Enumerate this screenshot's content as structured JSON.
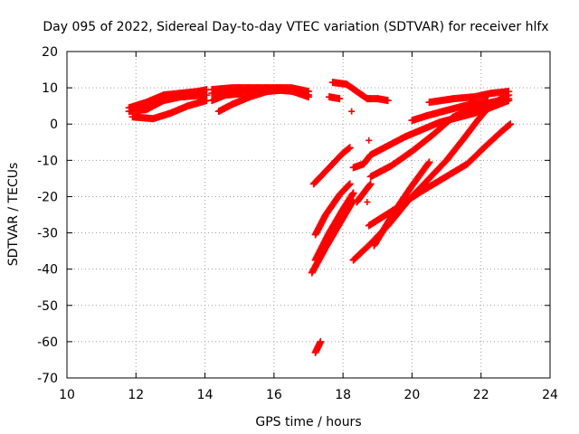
{
  "chart_data": {
    "type": "scatter",
    "title": "Day 095 of 2022, Sidereal Day-to-day VTEC variation (SDTVAR) for receiver hlfx",
    "xlabel": "GPS time / hours",
    "ylabel": "SDTVAR / TECUs",
    "xlim": [
      10,
      24
    ],
    "ylim": [
      -70,
      20
    ],
    "xticks": [
      10,
      12,
      14,
      16,
      18,
      20,
      22,
      24
    ],
    "yticks": [
      -70,
      -60,
      -50,
      -40,
      -30,
      -20,
      -10,
      0,
      10,
      20
    ],
    "grid": true,
    "marker": "+",
    "color": "#ff0000",
    "tracks": [
      [
        [
          11.8,
          4.5
        ],
        [
          12.3,
          6.0
        ],
        [
          12.8,
          8.0
        ],
        [
          13.3,
          8.5
        ],
        [
          13.8,
          9.0
        ],
        [
          14.05,
          9.5
        ]
      ],
      [
        [
          11.8,
          3.5
        ],
        [
          12.3,
          4.0
        ],
        [
          12.8,
          6.5
        ],
        [
          13.3,
          7.5
        ],
        [
          14.05,
          8.0
        ]
      ],
      [
        [
          11.9,
          2.0
        ],
        [
          12.5,
          1.5
        ],
        [
          13.0,
          3.0
        ],
        [
          13.5,
          5.0
        ],
        [
          14.05,
          6.5
        ]
      ],
      [
        [
          14.2,
          9.5
        ],
        [
          14.8,
          10.0
        ],
        [
          15.4,
          10.0
        ],
        [
          16.0,
          10.0
        ],
        [
          16.5,
          10.0
        ],
        [
          17.0,
          9.0
        ]
      ],
      [
        [
          14.2,
          8.5
        ],
        [
          14.8,
          9.0
        ],
        [
          15.4,
          9.5
        ],
        [
          16.0,
          9.5
        ],
        [
          16.6,
          9.0
        ],
        [
          17.0,
          8.0
        ]
      ],
      [
        [
          14.2,
          6.5
        ],
        [
          14.6,
          8.0
        ],
        [
          15.2,
          8.5
        ],
        [
          15.8,
          9.0
        ],
        [
          16.4,
          9.5
        ],
        [
          17.0,
          7.5
        ]
      ],
      [
        [
          14.4,
          3.5
        ],
        [
          14.8,
          5.5
        ],
        [
          15.3,
          7.5
        ],
        [
          15.8,
          9.0
        ],
        [
          16.2,
          9.5
        ]
      ],
      [
        [
          17.6,
          7.5
        ],
        [
          17.9,
          7.0
        ]
      ],
      [
        [
          17.7,
          11.5
        ],
        [
          18.1,
          11.0
        ],
        [
          18.4,
          9.0
        ],
        [
          18.7,
          7.0
        ],
        [
          19.0,
          7.0
        ],
        [
          19.3,
          6.5
        ]
      ],
      [
        [
          17.15,
          -16.5
        ],
        [
          17.6,
          -12.0
        ],
        [
          18.0,
          -8.0
        ],
        [
          18.2,
          -6.5
        ]
      ],
      [
        [
          17.2,
          -30.5
        ],
        [
          17.5,
          -25.0
        ],
        [
          17.9,
          -19.5
        ],
        [
          18.2,
          -16.5
        ]
      ],
      [
        [
          17.2,
          -37.5
        ],
        [
          17.6,
          -30.0
        ],
        [
          18.0,
          -23.5
        ],
        [
          18.3,
          -19.0
        ]
      ],
      [
        [
          17.1,
          -41.0
        ],
        [
          17.5,
          -34.0
        ],
        [
          17.9,
          -27.5
        ],
        [
          18.3,
          -21.0
        ]
      ],
      [
        [
          17.2,
          -63.0
        ],
        [
          17.35,
          -60.0
        ]
      ],
      [
        [
          18.3,
          -12.0
        ],
        [
          18.6,
          -11.0
        ],
        [
          18.8,
          -8.5
        ],
        [
          19.2,
          -6.5
        ],
        [
          19.8,
          -3.5
        ],
        [
          20.3,
          -1.5
        ],
        [
          20.8,
          0.5
        ],
        [
          21.4,
          2.0
        ],
        [
          22.0,
          3.5
        ],
        [
          22.8,
          6.5
        ]
      ],
      [
        [
          18.8,
          -14.5
        ],
        [
          19.4,
          -11.5
        ],
        [
          20.0,
          -7.5
        ],
        [
          20.6,
          -3.0
        ],
        [
          21.2,
          2.0
        ],
        [
          21.8,
          4.5
        ],
        [
          22.3,
          6.0
        ],
        [
          22.8,
          7.0
        ]
      ],
      [
        [
          18.3,
          -37.5
        ],
        [
          18.8,
          -33.0
        ],
        [
          19.3,
          -28.0
        ],
        [
          19.9,
          -21.0
        ],
        [
          20.5,
          -15.0
        ],
        [
          21.0,
          -10.0
        ],
        [
          21.5,
          -4.0
        ],
        [
          21.9,
          1.0
        ],
        [
          22.3,
          5.5
        ],
        [
          22.8,
          8.0
        ]
      ],
      [
        [
          18.75,
          -28.0
        ],
        [
          19.5,
          -23.5
        ],
        [
          20.2,
          -19.0
        ],
        [
          20.9,
          -15.0
        ],
        [
          21.6,
          -11.0
        ],
        [
          22.2,
          -5.5
        ],
        [
          22.6,
          -2.0
        ],
        [
          22.85,
          0.0
        ]
      ],
      [
        [
          18.9,
          -33.5
        ],
        [
          19.5,
          -24.0
        ],
        [
          20.0,
          -17.0
        ],
        [
          20.5,
          -10.5
        ]
      ],
      [
        [
          18.4,
          -21.5
        ],
        [
          18.8,
          -16.5
        ]
      ],
      [
        [
          20.5,
          6.0
        ],
        [
          21.2,
          7.0
        ],
        [
          21.8,
          7.5
        ],
        [
          22.3,
          8.5
        ],
        [
          22.8,
          9.0
        ]
      ],
      [
        [
          20.0,
          1.0
        ],
        [
          20.5,
          2.5
        ],
        [
          21.1,
          4.0
        ],
        [
          21.7,
          5.5
        ],
        [
          22.2,
          6.5
        ]
      ]
    ],
    "isolated_points": [
      [
        18.25,
        3.5
      ],
      [
        18.75,
        -4.5
      ],
      [
        18.7,
        -21.5
      ]
    ]
  }
}
